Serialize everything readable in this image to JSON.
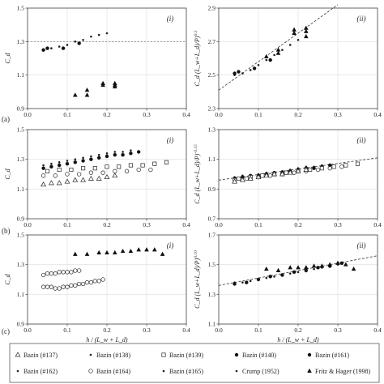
{
  "figure": {
    "row_labels": [
      "(a)",
      "(b)",
      "(c)"
    ],
    "legend": {
      "entries": [
        {
          "label": "Bazin (#137)",
          "marker": "tri-open"
        },
        {
          "label": "Bazin (#138)",
          "marker": "dot-small"
        },
        {
          "label": "Bazin (#139)",
          "marker": "sq-open"
        },
        {
          "label": "Bazin (#140)",
          "marker": "circle-filled"
        },
        {
          "label": "Bazin (#161)",
          "marker": "circle-filled"
        },
        {
          "label": "Bazin (#162)",
          "marker": "dot-small"
        },
        {
          "label": "Bazin (#164)",
          "marker": "circle-open"
        },
        {
          "label": "Bazin (#165)",
          "marker": "dot-small"
        },
        {
          "label": "Crump (1952)",
          "marker": "dot-small"
        },
        {
          "label": "Fritz & Hager (1998)",
          "marker": "tri-filled"
        }
      ]
    }
  },
  "chart_data": [
    {
      "panel": "a-i",
      "type": "scatter",
      "roman": "(i)",
      "ylabel": "C_d",
      "xlabel": "",
      "xlim": [
        0,
        0.4
      ],
      "ylim": [
        0.9,
        1.5
      ],
      "xticks": [
        "0.0",
        "0.1",
        "0.2",
        "0.3",
        "0.4"
      ],
      "yticks": [
        "0.9",
        "1.1",
        "1.3",
        "1.5"
      ],
      "hline": 1.3,
      "series": [
        {
          "marker": "dot-small",
          "x": [
            0.04,
            0.06,
            0.08,
            0.1,
            0.12,
            0.14,
            0.16,
            0.18,
            0.2
          ],
          "y": [
            1.25,
            1.26,
            1.27,
            1.28,
            1.3,
            1.31,
            1.33,
            1.34,
            1.35
          ]
        },
        {
          "marker": "circle-filled",
          "x": [
            0.04,
            0.05,
            0.09,
            0.13
          ],
          "y": [
            1.25,
            1.26,
            1.26,
            1.29
          ]
        },
        {
          "marker": "tri-filled",
          "x": [
            0.12,
            0.15,
            0.15,
            0.19,
            0.19,
            0.22,
            0.22,
            0.22
          ],
          "y": [
            0.98,
            1.01,
            0.98,
            1.05,
            1.04,
            1.05,
            1.04,
            1.03
          ]
        }
      ]
    },
    {
      "panel": "a-ii",
      "type": "scatter",
      "roman": "(ii)",
      "ylabel": "C_d (L_w+L_d)/P)^0.5",
      "xlabel": "",
      "xlim": [
        0,
        0.4
      ],
      "ylim": [
        2.3,
        2.9
      ],
      "xticks": [
        "0.0",
        "0.1",
        "0.2",
        "0.3",
        "0.4"
      ],
      "yticks": [
        "2.3",
        "2.5",
        "2.7",
        "2.9"
      ],
      "fit_line": {
        "x": [
          0,
          0.3
        ],
        "y": [
          2.41,
          2.92
        ]
      },
      "series": [
        {
          "marker": "dot-small",
          "x": [
            0.04,
            0.06,
            0.08,
            0.1,
            0.12,
            0.14,
            0.16,
            0.18,
            0.2
          ],
          "y": [
            2.5,
            2.51,
            2.53,
            2.56,
            2.59,
            2.62,
            2.65,
            2.68,
            2.71
          ]
        },
        {
          "marker": "circle-filled",
          "x": [
            0.04,
            0.05,
            0.09,
            0.13
          ],
          "y": [
            2.51,
            2.52,
            2.54,
            2.59
          ]
        },
        {
          "marker": "tri-filled",
          "x": [
            0.12,
            0.15,
            0.15,
            0.19,
            0.19,
            0.22,
            0.22,
            0.22
          ],
          "y": [
            2.61,
            2.65,
            2.63,
            2.77,
            2.75,
            2.78,
            2.76,
            2.73
          ]
        }
      ]
    },
    {
      "panel": "b-i",
      "type": "scatter",
      "roman": "(i)",
      "ylabel": "C_d",
      "xlabel": "",
      "xlim": [
        0,
        0.4
      ],
      "ylim": [
        0.9,
        1.5
      ],
      "xticks": [
        "0.0",
        "0.1",
        "0.2",
        "0.3",
        "0.4"
      ],
      "yticks": [
        "0.9",
        "1.1",
        "1.3",
        "1.5"
      ],
      "series": [
        {
          "marker": "dot-small",
          "x": [
            0.04,
            0.06,
            0.08,
            0.1,
            0.12,
            0.14,
            0.16,
            0.18,
            0.2,
            0.22,
            0.24,
            0.26
          ],
          "y": [
            1.26,
            1.27,
            1.28,
            1.29,
            1.3,
            1.31,
            1.32,
            1.33,
            1.34,
            1.35,
            1.35,
            1.36
          ]
        },
        {
          "marker": "circle-filled",
          "x": [
            0.04,
            0.06,
            0.08,
            0.1,
            0.12,
            0.14,
            0.16,
            0.18,
            0.2,
            0.22,
            0.24,
            0.26,
            0.28
          ],
          "y": [
            1.24,
            1.25,
            1.26,
            1.27,
            1.28,
            1.29,
            1.3,
            1.31,
            1.32,
            1.33,
            1.33,
            1.34,
            1.35
          ]
        },
        {
          "marker": "sq-open",
          "x": [
            0.05,
            0.08,
            0.11,
            0.14,
            0.17,
            0.2,
            0.23,
            0.26,
            0.29,
            0.32,
            0.35
          ],
          "y": [
            1.22,
            1.23,
            1.23,
            1.24,
            1.24,
            1.25,
            1.25,
            1.26,
            1.26,
            1.27,
            1.28
          ]
        },
        {
          "marker": "circle-open",
          "x": [
            0.04,
            0.07,
            0.1,
            0.13,
            0.16,
            0.19,
            0.22,
            0.25,
            0.28,
            0.31
          ],
          "y": [
            1.19,
            1.19,
            1.2,
            1.2,
            1.21,
            1.21,
            1.22,
            1.22,
            1.23,
            1.23
          ]
        },
        {
          "marker": "tri-open",
          "x": [
            0.04,
            0.06,
            0.08,
            0.1,
            0.12,
            0.14,
            0.16,
            0.18,
            0.2,
            0.22
          ],
          "y": [
            1.13,
            1.14,
            1.14,
            1.15,
            1.16,
            1.16,
            1.17,
            1.17,
            1.18,
            1.19
          ]
        }
      ]
    },
    {
      "panel": "b-ii",
      "type": "scatter",
      "roman": "(ii)",
      "ylabel": "C_d (L_w+L_d)/P)^-0.15",
      "xlabel": "",
      "xlim": [
        0,
        0.4
      ],
      "ylim": [
        0.7,
        1.3
      ],
      "xticks": [
        "0.0",
        "0.1",
        "0.2",
        "0.3",
        "0.4"
      ],
      "yticks": [
        "0.7",
        "0.9",
        "1.1",
        "1.3"
      ],
      "fit_line": {
        "x": [
          0,
          0.4
        ],
        "y": [
          0.96,
          1.11
        ]
      },
      "series": [
        {
          "marker": "dot-small",
          "x": [
            0.04,
            0.06,
            0.08,
            0.1,
            0.12,
            0.14,
            0.16,
            0.18,
            0.2,
            0.22,
            0.24,
            0.26
          ],
          "y": [
            0.98,
            0.99,
            0.99,
            1.0,
            1.01,
            1.01,
            1.02,
            1.03,
            1.04,
            1.05,
            1.05,
            1.06
          ]
        },
        {
          "marker": "circle-filled",
          "x": [
            0.04,
            0.06,
            0.08,
            0.1,
            0.12,
            0.14,
            0.16,
            0.18,
            0.2,
            0.22,
            0.24,
            0.26,
            0.28
          ],
          "y": [
            0.97,
            0.98,
            0.99,
            0.99,
            1.0,
            1.01,
            1.01,
            1.02,
            1.03,
            1.04,
            1.04,
            1.05,
            1.06
          ]
        },
        {
          "marker": "sq-open",
          "x": [
            0.05,
            0.08,
            0.11,
            0.14,
            0.17,
            0.2,
            0.23,
            0.26,
            0.29,
            0.32,
            0.35
          ],
          "y": [
            0.97,
            0.98,
            0.99,
            1.0,
            1.01,
            1.02,
            1.03,
            1.04,
            1.05,
            1.06,
            1.07
          ]
        },
        {
          "marker": "circle-open",
          "x": [
            0.04,
            0.07,
            0.1,
            0.13,
            0.16,
            0.19,
            0.22,
            0.25,
            0.28,
            0.31
          ],
          "y": [
            0.96,
            0.97,
            0.98,
            0.99,
            1.0,
            1.01,
            1.02,
            1.03,
            1.04,
            1.05
          ]
        },
        {
          "marker": "tri-open",
          "x": [
            0.04,
            0.06,
            0.08,
            0.1,
            0.12,
            0.14,
            0.16,
            0.18,
            0.2,
            0.22
          ],
          "y": [
            0.95,
            0.96,
            0.97,
            0.98,
            0.99,
            1.0,
            1.0,
            1.01,
            1.02,
            1.03
          ]
        }
      ]
    },
    {
      "panel": "c-i",
      "type": "scatter",
      "roman": "(i)",
      "ylabel": "C_d",
      "xlabel": "h / (L_w + L_d)",
      "xlim": [
        0,
        0.4
      ],
      "ylim": [
        0.9,
        1.5
      ],
      "xticks": [
        "0.0",
        "0.1",
        "0.2",
        "0.3",
        "0.4"
      ],
      "yticks": [
        "0.9",
        "1.1",
        "1.3",
        "1.5"
      ],
      "series": [
        {
          "marker": "circle-open",
          "x": [
            0.04,
            0.05,
            0.06,
            0.07,
            0.08,
            0.09,
            0.1,
            0.11,
            0.12,
            0.13
          ],
          "y": [
            1.23,
            1.24,
            1.24,
            1.24,
            1.25,
            1.25,
            1.25,
            1.25,
            1.26,
            1.26
          ]
        },
        {
          "marker": "circle-open",
          "x": [
            0.04,
            0.05,
            0.06,
            0.07,
            0.08,
            0.09,
            0.1,
            0.11,
            0.12,
            0.13,
            0.14,
            0.15,
            0.16,
            0.17,
            0.18,
            0.19
          ],
          "y": [
            1.15,
            1.15,
            1.15,
            1.14,
            1.14,
            1.15,
            1.15,
            1.16,
            1.16,
            1.17,
            1.17,
            1.18,
            1.18,
            1.19,
            1.19,
            1.2
          ]
        },
        {
          "marker": "tri-filled",
          "x": [
            0.12,
            0.15,
            0.18,
            0.2,
            0.22,
            0.24,
            0.26,
            0.28,
            0.3,
            0.32,
            0.34
          ],
          "y": [
            1.37,
            1.37,
            1.38,
            1.38,
            1.38,
            1.39,
            1.39,
            1.4,
            1.4,
            1.4,
            1.37
          ]
        }
      ]
    },
    {
      "panel": "c-ii",
      "type": "scatter",
      "roman": "(ii)",
      "ylabel": "C_d (L_w+L_d)/P)^0.10",
      "xlabel": "h / (L_w + L_d)",
      "xlim": [
        0,
        0.4
      ],
      "ylim": [
        1.1,
        1.7
      ],
      "xticks": [
        "0.0",
        "0.1",
        "0.2",
        "0.3",
        "0.4"
      ],
      "yticks": [
        "1.1",
        "1.3",
        "1.5",
        "1.7"
      ],
      "fit_line": {
        "x": [
          0,
          0.4
        ],
        "y": [
          1.36,
          1.56
        ]
      },
      "series": [
        {
          "marker": "dot-small",
          "x": [
            0.04,
            0.06,
            0.08,
            0.1,
            0.12,
            0.14,
            0.16,
            0.18,
            0.2,
            0.22,
            0.24,
            0.26,
            0.28,
            0.3,
            0.32
          ],
          "y": [
            1.38,
            1.38,
            1.39,
            1.4,
            1.41,
            1.42,
            1.43,
            1.44,
            1.45,
            1.46,
            1.47,
            1.48,
            1.49,
            1.5,
            1.5
          ]
        },
        {
          "marker": "circle-filled",
          "x": [
            0.04,
            0.07,
            0.1,
            0.13,
            0.16,
            0.19,
            0.22,
            0.25,
            0.28,
            0.31
          ],
          "y": [
            1.37,
            1.38,
            1.4,
            1.42,
            1.43,
            1.45,
            1.46,
            1.48,
            1.49,
            1.51
          ]
        },
        {
          "marker": "tri-filled",
          "x": [
            0.12,
            0.15,
            0.18,
            0.2,
            0.22,
            0.24,
            0.26,
            0.28,
            0.3,
            0.32,
            0.34
          ],
          "y": [
            1.47,
            1.46,
            1.48,
            1.48,
            1.48,
            1.49,
            1.49,
            1.5,
            1.51,
            1.5,
            1.47
          ]
        }
      ]
    }
  ]
}
